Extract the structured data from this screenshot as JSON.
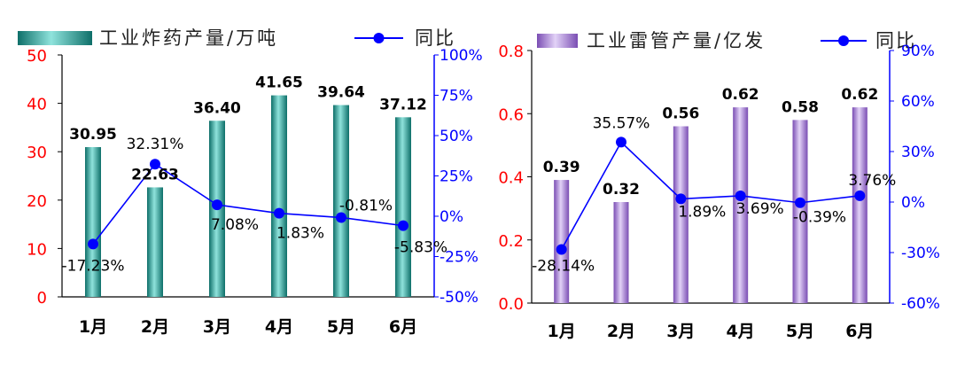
{
  "chart_data": [
    {
      "type": "bar+line",
      "categories": [
        "1月",
        "2月",
        "3月",
        "4月",
        "5月",
        "6月"
      ],
      "series": [
        {
          "name": "工业炸药产量/万吨",
          "kind": "bar",
          "axis": "left",
          "values": [
            30.95,
            22.63,
            36.4,
            41.65,
            39.64,
            37.12
          ],
          "labels": [
            "30.95",
            "22.63",
            "36.40",
            "41.65",
            "39.64",
            "37.12"
          ]
        },
        {
          "name": "同比",
          "kind": "line",
          "axis": "right",
          "values": [
            -17.23,
            32.31,
            7.08,
            1.83,
            -0.81,
            -5.83
          ],
          "labels": [
            "-17.23%",
            "32.31%",
            "7.08%",
            "1.83%",
            "-0.81%",
            "-5.83%"
          ]
        }
      ],
      "left_axis": {
        "ylim": [
          0,
          50
        ],
        "ticks": [
          "0",
          "10",
          "20",
          "30",
          "40",
          "50"
        ],
        "color": "#ff0000"
      },
      "right_axis": {
        "ylim": [
          -50,
          100
        ],
        "ticks": [
          "-50%",
          "-25%",
          "0%",
          "25%",
          "50%",
          "75%",
          "100%"
        ],
        "color": "#0000ff"
      },
      "legend_position": "top",
      "colors": {
        "bar": "#1a9a92",
        "bar_highlight": "#8fe3dc",
        "line": "#0000ff"
      }
    },
    {
      "type": "bar+line",
      "categories": [
        "1月",
        "2月",
        "3月",
        "4月",
        "5月",
        "6月"
      ],
      "series": [
        {
          "name": "工业雷管产量/亿发",
          "kind": "bar",
          "axis": "left",
          "values": [
            0.39,
            0.32,
            0.56,
            0.62,
            0.58,
            0.62
          ],
          "labels": [
            "0.39",
            "0.32",
            "0.56",
            "0.62",
            "0.58",
            "0.62"
          ]
        },
        {
          "name": "同比",
          "kind": "line",
          "axis": "right",
          "values": [
            -28.14,
            35.57,
            1.89,
            3.69,
            -0.39,
            3.76
          ],
          "labels": [
            "-28.14%",
            "35.57%",
            "1.89%",
            "3.69%",
            "-0.39%",
            "3.76%"
          ]
        }
      ],
      "left_axis": {
        "ylim": [
          0,
          0.8
        ],
        "ticks": [
          "0.0",
          "0.2",
          "0.4",
          "0.6",
          "0.8"
        ],
        "color": "#ff0000"
      },
      "right_axis": {
        "ylim": [
          -60,
          90
        ],
        "ticks": [
          "-60%",
          "-30%",
          "0%",
          "30%",
          "60%",
          "90%"
        ],
        "color": "#0000ff"
      },
      "legend_position": "top",
      "colors": {
        "bar": "#9966cc",
        "bar_highlight": "#dcc8f5",
        "line": "#0000ff"
      }
    }
  ]
}
